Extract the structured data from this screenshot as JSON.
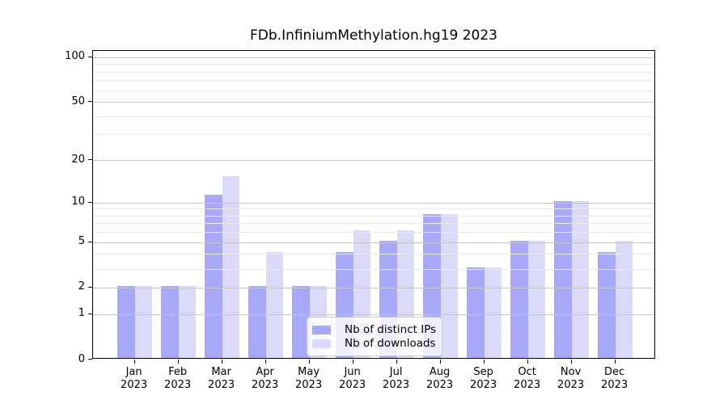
{
  "chart_data": {
    "type": "bar",
    "title": "FDb.InfiniumMethylation.hg19 2023",
    "x_categories": [
      {
        "month": "Jan",
        "year": "2023"
      },
      {
        "month": "Feb",
        "year": "2023"
      },
      {
        "month": "Mar",
        "year": "2023"
      },
      {
        "month": "Apr",
        "year": "2023"
      },
      {
        "month": "May",
        "year": "2023"
      },
      {
        "month": "Jun",
        "year": "2023"
      },
      {
        "month": "Jul",
        "year": "2023"
      },
      {
        "month": "Aug",
        "year": "2023"
      },
      {
        "month": "Sep",
        "year": "2023"
      },
      {
        "month": "Oct",
        "year": "2023"
      },
      {
        "month": "Nov",
        "year": "2023"
      },
      {
        "month": "Dec",
        "year": "2023"
      }
    ],
    "series": [
      {
        "name": "Nb of distinct IPs",
        "color": "#a8a8f9",
        "values": [
          2,
          2,
          11,
          2,
          2,
          4,
          5,
          8,
          3,
          5,
          10,
          4
        ]
      },
      {
        "name": "Nb of downloads",
        "color": "#dbdbf9",
        "values": [
          2,
          2,
          15,
          4,
          2,
          6,
          6,
          8,
          3,
          5,
          10,
          5
        ]
      }
    ],
    "y_axis": {
      "scale": "log1p",
      "ticks_major": [
        0,
        1,
        2,
        5,
        10,
        20,
        50,
        100
      ],
      "ticks_minor": [
        3,
        4,
        6,
        7,
        8,
        9,
        30,
        40,
        60,
        70,
        80,
        90
      ],
      "ylim": [
        0,
        110
      ]
    },
    "grid": {
      "major_color": "#c6c6c6",
      "minor_color": "#eaeaea",
      "drawn_above_bars": true
    },
    "legend": {
      "background": "rgba(255,255,255,0.8)",
      "border_color": "#cccccc",
      "position": "lower-center"
    }
  }
}
